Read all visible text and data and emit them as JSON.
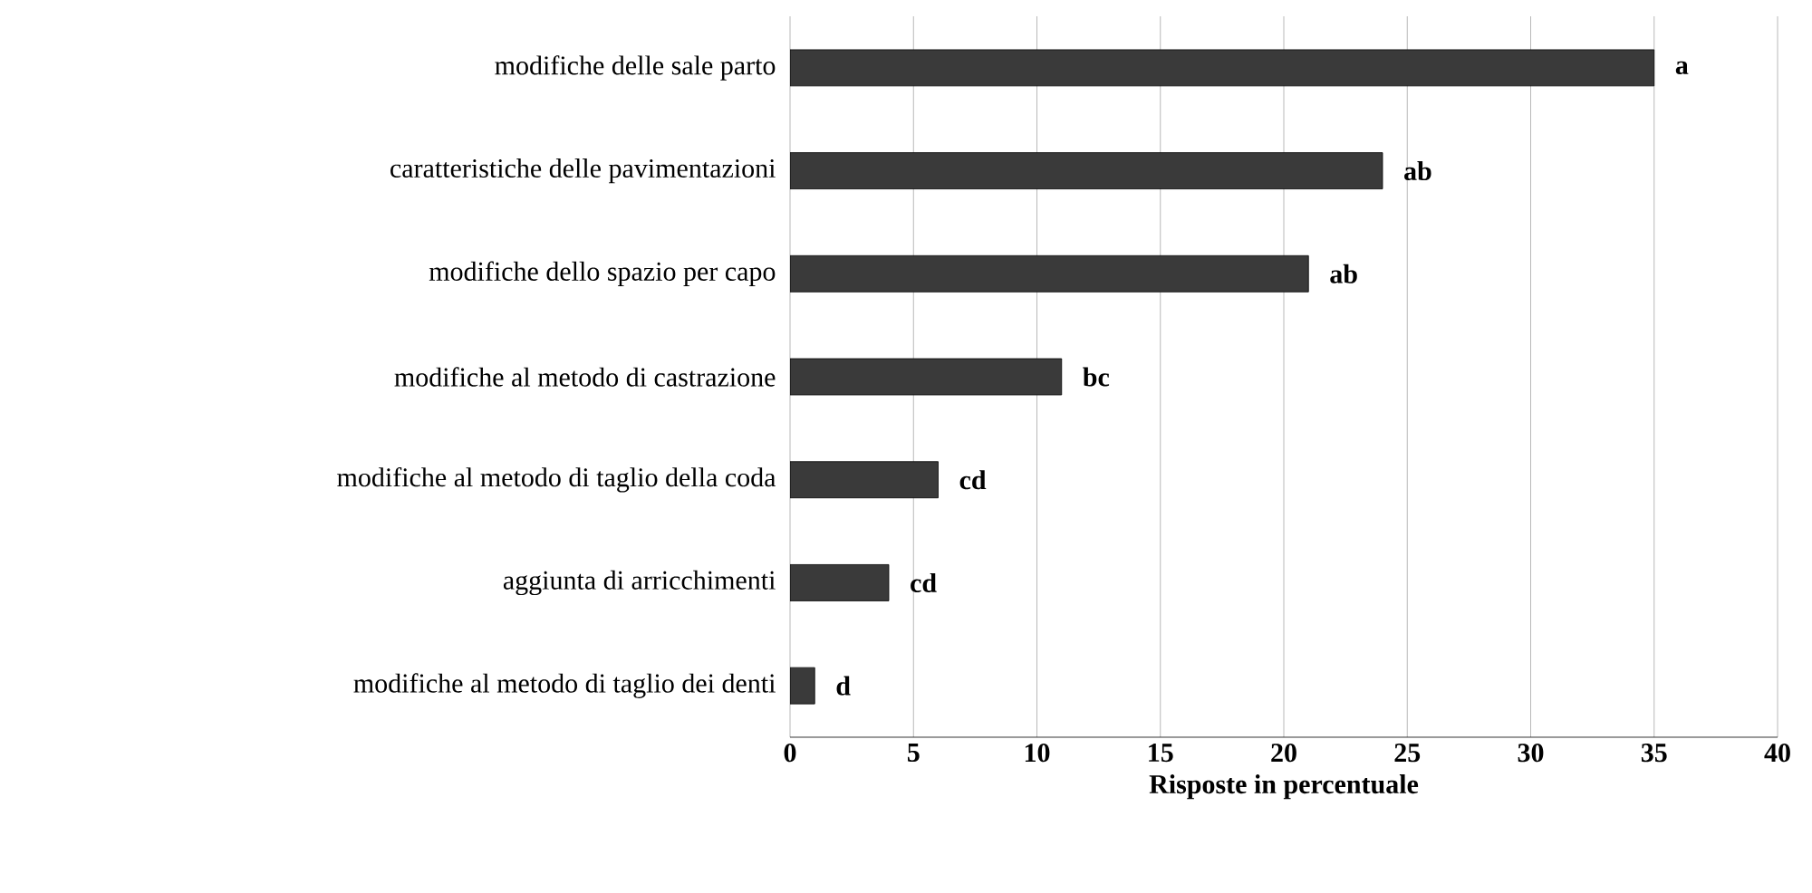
{
  "chart_data": {
    "type": "bar",
    "orientation": "horizontal",
    "xlabel": "Risposte in percentuale",
    "categories": [
      "modifiche delle sale parto",
      "caratteristiche delle pavimentazioni",
      "modifiche dello spazio per capo",
      "modifiche al metodo di castrazione",
      "modifiche al metodo di taglio della coda",
      "aggiunta di arricchimenti",
      "modifiche al metodo di taglio dei denti"
    ],
    "values": [
      35,
      24,
      21,
      11,
      6,
      4,
      1
    ],
    "color": "#3a3a3a",
    "xlim": [
      0,
      40
    ],
    "xticks": [
      0,
      5,
      10,
      15,
      20,
      25,
      30,
      35,
      40
    ],
    "grid": "x",
    "annotations": [
      {
        "text": "a",
        "x": 35,
        "y": "modifiche delle sale parto"
      },
      {
        "text": "ab",
        "x": 24,
        "y": "caratteristiche delle pavimentazioni"
      },
      {
        "text": "ab",
        "x": 21,
        "y": "modifiche dello spazio per capo"
      },
      {
        "text": "bc",
        "x": 11,
        "y": "modifiche al metodo di castrazione"
      },
      {
        "text": "cd",
        "x": 6,
        "y": "modifiche al metodo di taglio della coda"
      },
      {
        "text": "cd",
        "x": 4,
        "y": "aggiunta di arricchimenti"
      },
      {
        "text": "d",
        "x": 1,
        "y": "modifiche al metodo di taglio dei denti"
      }
    ]
  }
}
